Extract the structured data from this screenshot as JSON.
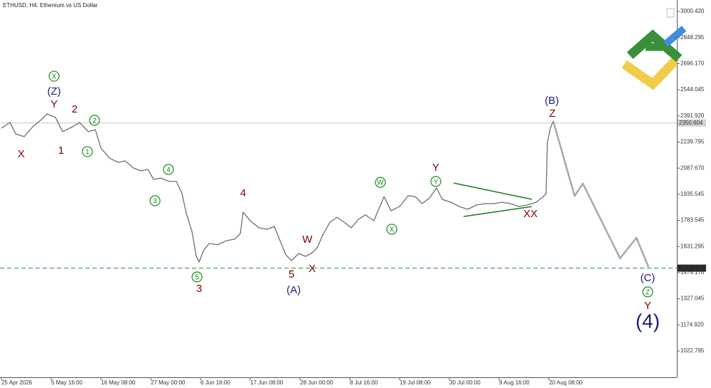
{
  "chart_data": {
    "type": "line",
    "title": "ETHUSD, H4: Ethereum vs US Dollar",
    "xlim": [
      -7.3,
      3474.0
    ],
    "ylim": [
      869.4,
      3066.8
    ],
    "xticks": [
      {
        "value": 0,
        "label": "25 Apr 2026"
      },
      {
        "value": 256,
        "label": "5 May 16:00"
      },
      {
        "value": 512,
        "label": "16 May 08:00"
      },
      {
        "value": 768,
        "label": "27 May 00:00"
      },
      {
        "value": 1024,
        "label": "6 Jun 16:00"
      },
      {
        "value": 1280,
        "label": "17 Jun 08:00"
      },
      {
        "value": 1536,
        "label": "28 Jun 00:00"
      },
      {
        "value": 1792,
        "label": "8 Jul 16:00"
      },
      {
        "value": 2048,
        "label": "19 Jul 08:00"
      },
      {
        "value": 2304,
        "label": "30 Jul 00:00"
      },
      {
        "value": 2560,
        "label": "9 Aug 16:00"
      },
      {
        "value": 2816,
        "label": "20 Aug 08:00"
      }
    ],
    "yticks": [
      {
        "value": 3000.42,
        "label": "3000.420"
      },
      2848.295,
      {
        "value": 2696.17,
        "label": "2696.170"
      },
      2544.045,
      {
        "value": 2391.92,
        "label": "2391.920"
      },
      2239.795,
      {
        "value": 2087.67,
        "label": "2087.670"
      },
      1935.545,
      1783.545,
      1631.295,
      {
        "value": 1479.17,
        "label": "1479.170"
      },
      1327.045,
      {
        "value": 1174.92,
        "label": "1174.920"
      },
      1022.795
    ],
    "series": [
      {
        "color": "#6e6e6e",
        "x": [
          0,
          44,
          73,
          117,
          161,
          205,
          234,
          278,
          315,
          366,
          402,
          446,
          483,
          512,
          556,
          600,
          636,
          680,
          717,
          753,
          783,
          819,
          863,
          900,
          929,
          951,
          980,
          1002,
          1017,
          1039,
          1068,
          1112,
          1156,
          1200,
          1229,
          1243,
          1280,
          1324,
          1368,
          1404,
          1433,
          1463,
          1492,
          1529,
          1565,
          1594,
          1624,
          1653,
          1690,
          1726,
          1763,
          1799,
          1836,
          1872,
          1916,
          1946,
          1968,
          2004,
          2048,
          2092,
          2128,
          2165,
          2202,
          2238,
          2267,
          2311,
          2355,
          2399,
          2443,
          2487,
          2531,
          2575,
          2618,
          2662,
          2706,
          2750,
          2787,
          2801,
          2808,
          2823,
          2838
        ],
        "values": [
          2320,
          2354,
          2287,
          2271,
          2329,
          2370,
          2403,
          2383,
          2300,
          2329,
          2354,
          2300,
          2312,
          2204,
          2146,
          2121,
          2130,
          2088,
          2072,
          2080,
          2022,
          2030,
          2010,
          2010,
          1939,
          1823,
          1719,
          1574,
          1541,
          1607,
          1649,
          1641,
          1665,
          1674,
          1707,
          1831,
          1781,
          1740,
          1732,
          1748,
          1665,
          1582,
          1549,
          1591,
          1574,
          1591,
          1624,
          1699,
          1773,
          1802,
          1773,
          1740,
          1790,
          1815,
          1781,
          1864,
          1922,
          1839,
          1864,
          1927,
          1922,
          1881,
          1914,
          1972,
          1906,
          1889,
          1864,
          1848,
          1873,
          1881,
          1881,
          1889,
          1881,
          1864,
          1873,
          1889,
          1922,
          1939,
          2238,
          2320,
          2362
        ]
      },
      {
        "color": "#a8a8a8",
        "x": [
          2838,
          2948,
          2991,
          3182,
          3266,
          3328
        ],
        "values": [
          2362,
          1926,
          1997,
          1562,
          1682,
          1512
        ]
      }
    ],
    "trendlines": [
      {
        "color": "#1f7a1f",
        "x": [
          2326,
          2728
        ],
        "values": [
          2001,
          1906
        ]
      },
      {
        "color": "#1f7a1f",
        "x": [
          2377,
          2728
        ],
        "values": [
          1806,
          1864
        ]
      }
    ],
    "levels": [
      {
        "value": 2350.604,
        "color": "#c8c8c8",
        "dashed": false
      },
      {
        "value": 1505.307,
        "color": "#2e8b2e",
        "dashed": true
      }
    ],
    "annotations": [
      {
        "text": "X",
        "x": 271,
        "y": 2623,
        "color": "#1a8a1a",
        "circled": true
      },
      {
        "text": "(Z)",
        "x": 271,
        "y": 2536,
        "color": "#1c1c7a"
      },
      {
        "text": "Y",
        "x": 271,
        "y": 2462,
        "color": "#800000"
      },
      {
        "text": "X",
        "x": 102,
        "y": 2171,
        "color": "#800000"
      },
      {
        "text": "2",
        "x": 377,
        "y": 2432,
        "color": "#800000"
      },
      {
        "text": "1",
        "x": 307,
        "y": 2192,
        "color": "#800000"
      },
      {
        "text": "2",
        "x": 479,
        "y": 2366,
        "color": "#1a8a1a",
        "circled": true
      },
      {
        "text": "1",
        "x": 442,
        "y": 2184,
        "color": "#1a8a1a",
        "circled": true
      },
      {
        "text": "4",
        "x": 859,
        "y": 2080,
        "color": "#1a8a1a",
        "circled": true
      },
      {
        "text": "3",
        "x": 790,
        "y": 1898,
        "color": "#1a8a1a",
        "circled": true
      },
      {
        "text": "4",
        "x": 1243,
        "y": 1943,
        "color": "#800000"
      },
      {
        "text": "5",
        "x": 1006,
        "y": 1454,
        "color": "#1a8a1a",
        "circled": true
      },
      {
        "text": "3",
        "x": 1017,
        "y": 1388,
        "color": "#800000"
      },
      {
        "text": "5",
        "x": 1492,
        "y": 1471,
        "color": "#800000"
      },
      {
        "text": "(A)",
        "x": 1503,
        "y": 1379,
        "color": "#1c1c7a"
      },
      {
        "text": "W",
        "x": 1573,
        "y": 1674,
        "color": "#800000"
      },
      {
        "text": "X",
        "x": 1598,
        "y": 1504,
        "color": "#800000"
      },
      {
        "text": "W",
        "x": 1949,
        "y": 2005,
        "color": "#1a8a1a",
        "circled": true
      },
      {
        "text": "X",
        "x": 2008,
        "y": 1732,
        "color": "#1a8a1a",
        "circled": true
      },
      {
        "text": "Y",
        "x": 2234,
        "y": 2092,
        "color": "#800000"
      },
      {
        "text": "Y",
        "x": 2234,
        "y": 2010,
        "color": "#1a8a1a",
        "circled": true
      },
      {
        "text": "XX",
        "x": 2721,
        "y": 1823,
        "color": "#800000"
      },
      {
        "text": "(B)",
        "x": 2831,
        "y": 2482,
        "color": "#1c1c7a"
      },
      {
        "text": "Z",
        "x": 2834,
        "y": 2408,
        "color": "#800000"
      },
      {
        "text": "(C)",
        "x": 3324,
        "y": 1450,
        "color": "#1c1c7a"
      },
      {
        "text": "Z",
        "x": 3324,
        "y": 1367,
        "color": "#1a8a1a",
        "circled": true
      },
      {
        "text": "Y",
        "x": 3324,
        "y": 1288,
        "color": "#800000"
      },
      {
        "text": "(4)",
        "x": 3324,
        "y": 1193,
        "color": "#1c1c7a",
        "big": true
      }
    ]
  }
}
